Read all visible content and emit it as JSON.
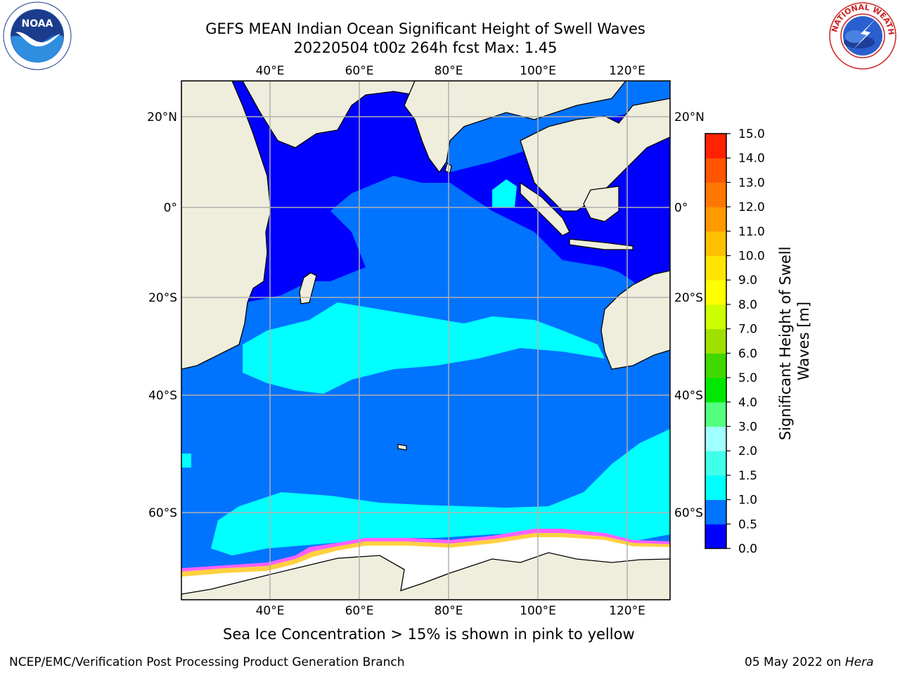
{
  "header": {
    "title_line1": "GEFS MEAN Indian Ocean Significant Height of Swell Waves",
    "title_line2": "20220504 t00z 264h fcst   Max: 1.45"
  },
  "map": {
    "lon_labels": [
      "40°E",
      "60°E",
      "80°E",
      "100°E",
      "120°E"
    ],
    "lat_labels": [
      "20°N",
      "0°",
      "20°S",
      "40°S",
      "60°S"
    ],
    "lon_values": [
      40,
      60,
      80,
      100,
      120
    ],
    "lat_values": [
      20,
      0,
      -20,
      -40,
      -60
    ],
    "extent": {
      "lon_min": 20,
      "lon_max": 130,
      "lat_min": -69,
      "lat_max": 28
    }
  },
  "colorbar": {
    "label": "Significant Height of Swell Waves [m]",
    "label_line1": "Significant Height of Swell",
    "label_line2": "Waves [m]",
    "ticks": [
      "0.0",
      "0.5",
      "1.0",
      "1.5",
      "2.0",
      "3.0",
      "4.0",
      "5.0",
      "6.0",
      "7.0",
      "8.0",
      "9.0",
      "10.0",
      "11.0",
      "12.0",
      "13.0",
      "14.0",
      "15.0"
    ],
    "colors": [
      "#0000ff",
      "#0073ff",
      "#00ffff",
      "#40ffea",
      "#a0ffff",
      "#55ff80",
      "#00e800",
      "#40d800",
      "#a0e000",
      "#ccff00",
      "#ffff00",
      "#ffe600",
      "#ffc000",
      "#ff9900",
      "#ff7700",
      "#ff5500",
      "#ff2200",
      "#ff0000"
    ]
  },
  "caption": "Sea Ice Concentration > 15% is shown in pink to yellow",
  "footer": {
    "left": "NCEP/EMC/Verification Post Processing Product Generation Branch",
    "right_date": "05 May 2022 on ",
    "right_machine": "Hera"
  },
  "logos": {
    "left": "NOAA",
    "right": "NATIONAL WEATHER SERVICE"
  },
  "colors": {
    "land": "#efeedd",
    "sea_ice": "#ffffff",
    "grid": "#b0b0b0"
  }
}
